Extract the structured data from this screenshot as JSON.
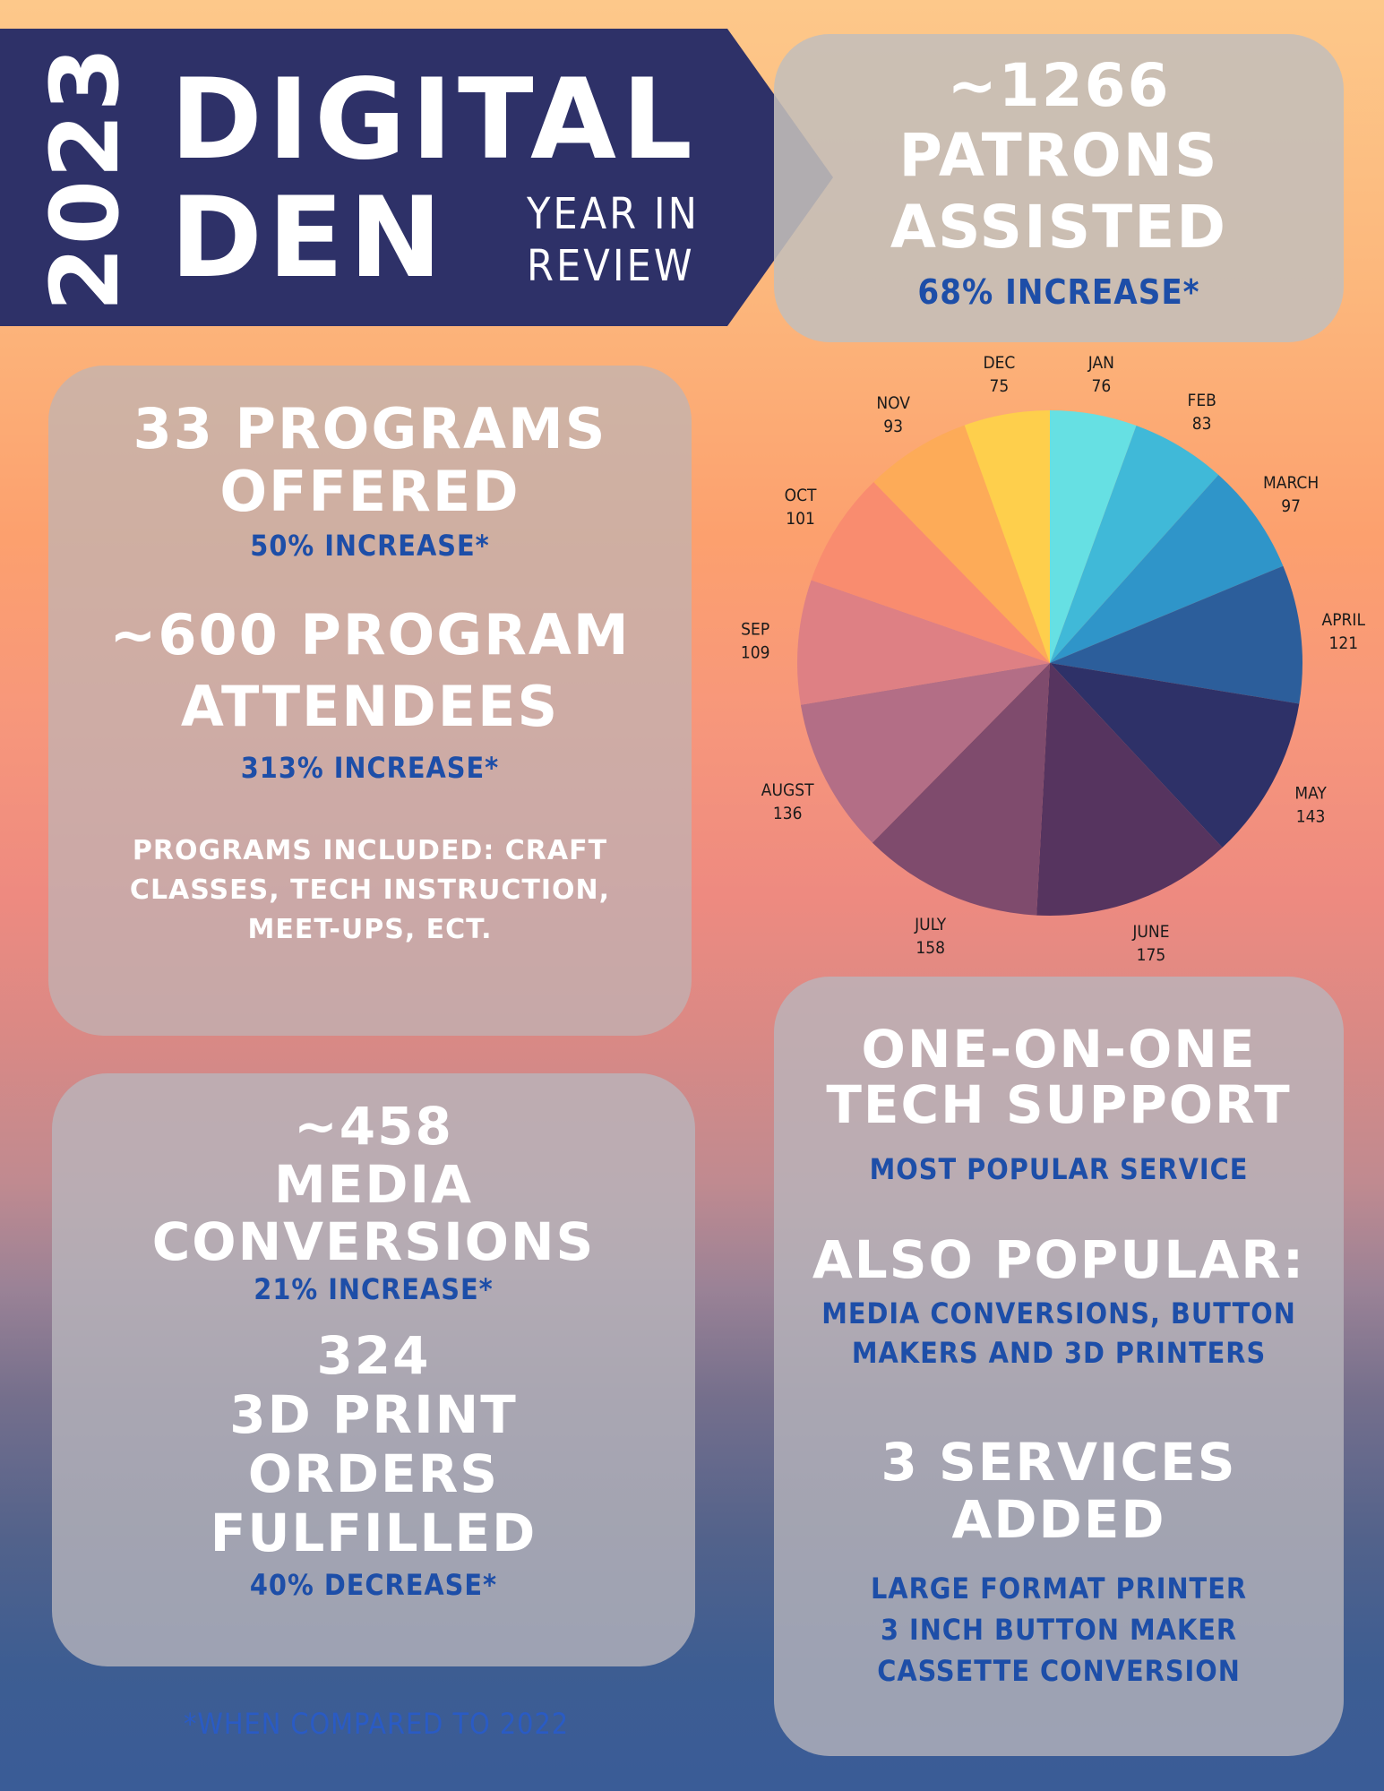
{
  "header": {
    "year": "2023",
    "title_line1": "DIGITAL",
    "title_line2": "DEN",
    "subtitle_line1": "YEAR IN",
    "subtitle_line2": "REVIEW",
    "banner_color": "#2e3168"
  },
  "patrons": {
    "count": "~1266",
    "line1": "PATRONS",
    "line2": "ASSISTED",
    "change": "68% INCREASE*"
  },
  "programs": {
    "offered_line1": "33 PROGRAMS",
    "offered_line2": "OFFERED",
    "offered_change": "50% INCREASE*",
    "attendees_line1": "~600 PROGRAM",
    "attendees_line2": "ATTENDEES",
    "attendees_change": "313% INCREASE*",
    "included_line1": "PROGRAMS INCLUDED: CRAFT",
    "included_line2": "CLASSES, TECH INSTRUCTION,",
    "included_line3": "MEET-UPS, ECT."
  },
  "media": {
    "count": "~458",
    "line1": "MEDIA",
    "line2": "CONVERSIONS",
    "change": "21% INCREASE*",
    "print_count": "324",
    "print_line1": "3D PRINT",
    "print_line2": "ORDERS",
    "print_line3": "FULFILLED",
    "print_change": "40% DECREASE*"
  },
  "services": {
    "top_line1": "ONE-ON-ONE",
    "top_line2": "TECH SUPPORT",
    "top_note": "MOST POPULAR SERVICE",
    "also_title": "ALSO POPULAR:",
    "also_line1": "MEDIA CONVERSIONS, BUTTON",
    "also_line2": "MAKERS AND 3D PRINTERS",
    "added_line1": "3 SERVICES",
    "added_line2": "ADDED",
    "added_item1": "LARGE FORMAT PRINTER",
    "added_item2": "3 INCH BUTTON MAKER",
    "added_item3": "CASSETTE CONVERSION"
  },
  "footer": {
    "note": "*WHEN COMPARED TO 2022"
  },
  "chart_data": {
    "type": "pie",
    "title": "",
    "categories": [
      "JAN",
      "FEB",
      "MARCH",
      "APRIL",
      "MAY",
      "JUNE",
      "JULY",
      "AUGST",
      "SEP",
      "OCT",
      "NOV",
      "DEC"
    ],
    "values": [
      76,
      83,
      97,
      121,
      143,
      175,
      158,
      136,
      109,
      101,
      93,
      75
    ],
    "colors": [
      "#66e0e3",
      "#40b9d8",
      "#2f95c9",
      "#2c5e9b",
      "#2e3168",
      "#56345f",
      "#7f4b6d",
      "#b36e86",
      "#de8084",
      "#f98c6f",
      "#fdab58",
      "#fecf4c"
    ],
    "legend": "none",
    "labels_outside": true
  }
}
